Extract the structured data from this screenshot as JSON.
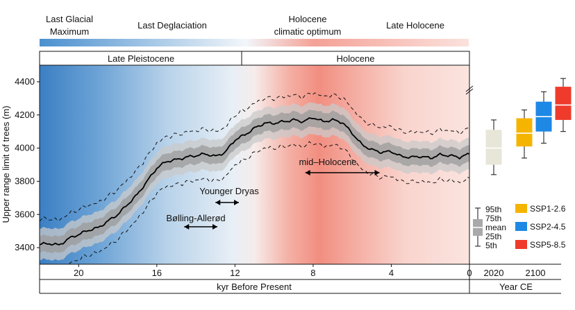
{
  "colors": {
    "cold": "#3a86c8",
    "neutral": "#f4f7fb",
    "warm": "#f08a7a",
    "band_outer": "#c8c8c8",
    "band_inner": "#9a9a9a",
    "box_2020": "#e8e6d8",
    "ssp126": "#f5b400",
    "ssp245": "#1e88e5",
    "ssp585": "#ef3b2c"
  },
  "periods": [
    {
      "label_lines": [
        "Last Glacial",
        "Maximum"
      ]
    },
    {
      "label_lines": [
        "Last Deglaciation"
      ]
    },
    {
      "label_lines": [
        "Holocene",
        "climatic optimum"
      ]
    },
    {
      "label_lines": [
        "Late Holocene"
      ]
    }
  ],
  "epochs": [
    "Late Pleistocene",
    "Holocene"
  ],
  "annotations": [
    {
      "label": "Younger Dryas",
      "x_from": 13.0,
      "x_to": 11.8
    },
    {
      "label": "Bølling-Allerød",
      "x_from": 14.6,
      "x_to": 12.9
    },
    {
      "label": "mid–Holocene",
      "x_from": 8.4,
      "x_to": 4.6
    }
  ],
  "legend": {
    "percentiles": [
      "95th",
      "75th",
      "mean",
      "25th",
      "5th"
    ],
    "scenarios": [
      "SSP1-2.6",
      "SSP2-4.5",
      "SSP5-8.5"
    ]
  },
  "chart_data": [
    {
      "type": "line",
      "ylabel": "Upper range limit of trees (m)",
      "xlabel": "kyr Before Present",
      "xlim": [
        22,
        0
      ],
      "ylim": [
        3300,
        4500
      ],
      "x_ticks": [
        "20",
        "16",
        "12",
        "8",
        "4",
        "0"
      ],
      "y_ticks": [
        "3400",
        "3600",
        "3800",
        "4000",
        "4200",
        "4400"
      ],
      "series": [
        {
          "x": [
            22,
            21.5,
            21,
            20.5,
            20,
            19.5,
            19,
            18.5,
            18,
            17.5,
            17,
            16.5,
            16,
            15.5,
            15,
            14.5,
            14,
            13.5,
            13,
            12.5,
            12,
            11.5,
            11,
            10.5,
            10,
            9.5,
            9,
            8.5,
            8,
            7.5,
            7,
            6.5,
            6,
            5.5,
            5,
            4.5,
            4,
            3.5,
            3,
            2.5,
            2,
            1.5,
            1,
            0.5,
            0
          ],
          "values": [
            3420,
            3425,
            3415,
            3455,
            3480,
            3505,
            3520,
            3560,
            3600,
            3660,
            3720,
            3800,
            3880,
            3920,
            3930,
            3945,
            3955,
            3965,
            3950,
            3975,
            4050,
            4080,
            4120,
            4150,
            4150,
            4160,
            4170,
            4160,
            4185,
            4160,
            4170,
            4155,
            4090,
            4020,
            3990,
            3975,
            3980,
            3950,
            3945,
            3950,
            3940,
            3960,
            3955,
            3945,
            3965
          ]
        }
      ]
    },
    {
      "type": "box",
      "xlabel": "Year CE",
      "ylim": [
        3300,
        4500
      ],
      "categories": [
        "2020",
        "2100"
      ],
      "boxes": [
        {
          "category": "2020",
          "scenario": "",
          "p5": 3840,
          "p25": 3900,
          "mean": 4000,
          "p75": 4110,
          "p95": 4170
        },
        {
          "category": "2100",
          "scenario": "SSP1-2.6",
          "p5": 3940,
          "p25": 4010,
          "mean": 4090,
          "p75": 4180,
          "p95": 4230
        },
        {
          "category": "2100",
          "scenario": "SSP2-4.5",
          "p5": 4030,
          "p25": 4100,
          "mean": 4190,
          "p75": 4280,
          "p95": 4340
        },
        {
          "category": "2100",
          "scenario": "SSP5-8.5",
          "p5": 4100,
          "p25": 4170,
          "mean": 4260,
          "p75": 4370,
          "p95": 4420
        }
      ]
    }
  ]
}
